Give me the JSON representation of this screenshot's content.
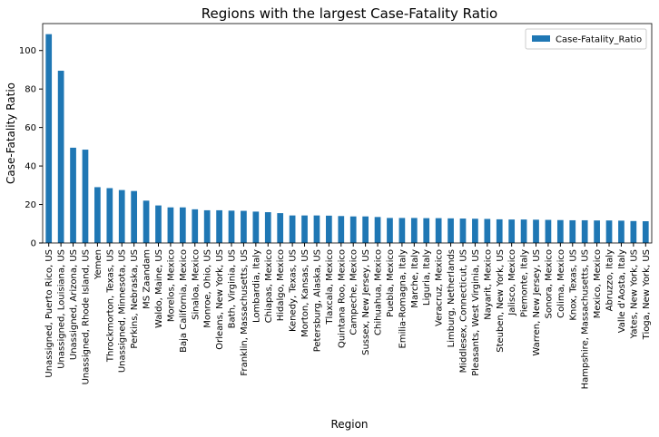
{
  "chart_data": {
    "type": "bar",
    "title": "Regions with the largest Case-Fatality Ratio",
    "x_label": "Region",
    "y_label": "Case-Fatality Ratio",
    "categories": [
      "Unassigned, Puerto Rico, US",
      "Unassigned, Louisiana, US",
      "Unassigned, Arizona, US",
      "Unassigned, Rhode Island, US",
      "Yemen",
      "Throckmorton, Texas, US",
      "Unassigned, Minnesota, US",
      "Perkins, Nebraska, US",
      "MS Zaandam",
      "Waldo, Maine, US",
      "Morelos, Mexico",
      "Baja California, Mexico",
      "Sinaloa, Mexico",
      "Monroe, Ohio, US",
      "Orleans, New York, US",
      "Bath, Virginia, US",
      "Franklin, Massachusetts, US",
      "Lombardia, Italy",
      "Chiapas, Mexico",
      "Hidalgo, Mexico",
      "Kenedy, Texas, US",
      "Morton, Kansas, US",
      "Petersburg, Alaska, US",
      "Tlaxcala, Mexico",
      "Quintana Roo, Mexico",
      "Campeche, Mexico",
      "Sussex, New Jersey, US",
      "Chihuahua, Mexico",
      "Puebla, Mexico",
      "Emilia-Romagna, Italy",
      "Marche, Italy",
      "Liguria, Italy",
      "Veracruz, Mexico",
      "Limburg, Netherlands",
      "Middlesex, Connecticut, US",
      "Pleasants, West Virginia, US",
      "Nayarit, Mexico",
      "Steuben, New York, US",
      "Jalisco, Mexico",
      "Piemonte, Italy",
      "Warren, New Jersey, US",
      "Sonora, Mexico",
      "Colima, Mexico",
      "Knox, Texas, US",
      "Hampshire, Massachusetts, US",
      "Mexico, Mexico",
      "Abruzzo, Italy",
      "Valle d'Aosta, Italy",
      "Yates, New York, US",
      "Tioga, New York, US"
    ],
    "series": [
      {
        "name": "Case-Fatality_Ratio",
        "color": "#1f77b4",
        "values": [
          108.5,
          89.5,
          49.5,
          48.5,
          29,
          28.5,
          27.5,
          27,
          22,
          19.5,
          18.5,
          18.5,
          17.5,
          17,
          17,
          16.8,
          16.7,
          16.3,
          16,
          15.5,
          14.3,
          14.3,
          14.3,
          14.2,
          14,
          13.8,
          13.8,
          13.5,
          13,
          13,
          13,
          12.9,
          12.9,
          12.8,
          12.7,
          12.6,
          12.5,
          12.3,
          12.2,
          12.2,
          12.1,
          12,
          11.9,
          11.8,
          11.8,
          11.7,
          11.7,
          11.6,
          11.4,
          11.3
        ]
      }
    ],
    "ylim": [
      0,
      114
    ],
    "yticks": [
      0,
      20,
      40,
      60,
      80,
      100
    ],
    "legend": "upper right"
  }
}
